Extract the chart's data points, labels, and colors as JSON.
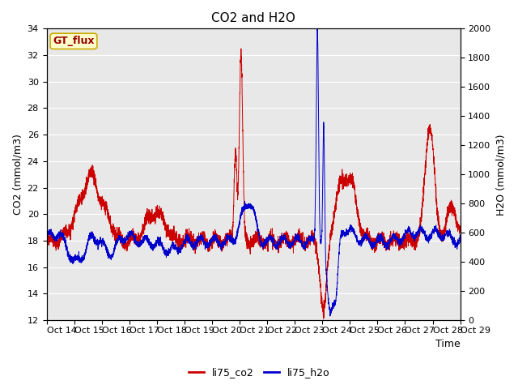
{
  "title": "CO2 and H2O",
  "xlabel": "Time",
  "ylabel_left": "CO2 (mmol/m3)",
  "ylabel_right": "H2O (mmol/m3)",
  "ylim_left": [
    12,
    34
  ],
  "ylim_right": [
    0,
    2000
  ],
  "yticks_left": [
    12,
    14,
    16,
    18,
    20,
    22,
    24,
    26,
    28,
    30,
    32,
    34
  ],
  "yticks_right": [
    0,
    200,
    400,
    600,
    800,
    1000,
    1200,
    1400,
    1600,
    1800,
    2000
  ],
  "xtick_labels": [
    "Oct 14",
    "Oct 15",
    "Oct 16",
    "Oct 17",
    "Oct 18",
    "Oct 19",
    "Oct 20",
    "Oct 21",
    "Oct 22",
    "Oct 23",
    "Oct 24",
    "Oct 25",
    "Oct 26",
    "Oct 27",
    "Oct 28",
    "Oct 29"
  ],
  "color_co2": "#cc0000",
  "color_h2o": "#0000cc",
  "legend_label_co2": "li75_co2",
  "legend_label_h2o": "li75_h2o",
  "box_label": "GT_flux",
  "background_color": "#ffffff",
  "plot_bg_color": "#e8e8e8",
  "title_fontsize": 11,
  "axis_fontsize": 9,
  "tick_fontsize": 8,
  "linewidth": 0.7
}
